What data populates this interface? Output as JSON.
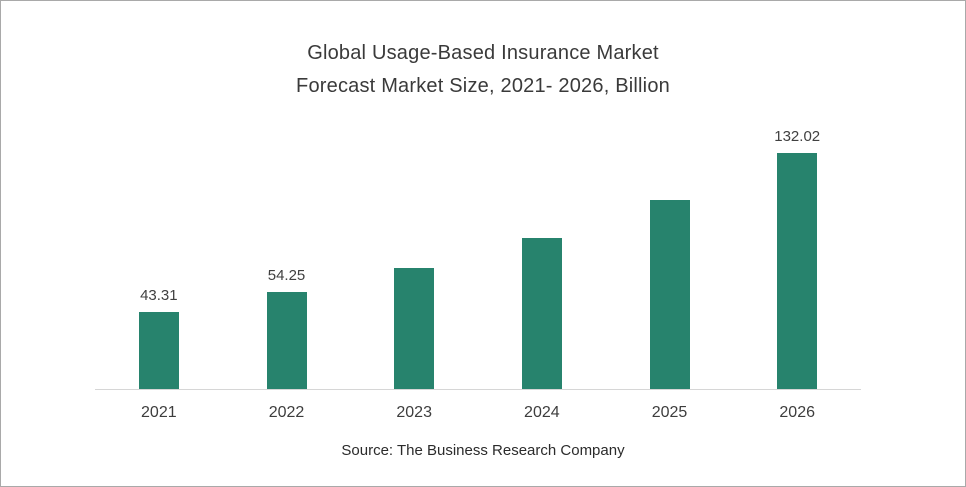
{
  "chart": {
    "title_display": "Global Usage-Based Insurance Market\nForecast Market Size, 2021- 2026, Billion",
    "source": "Source: The Business Research Company",
    "bar_color": "#27836D",
    "label_color": "#404040"
  },
  "chart_data": {
    "type": "bar",
    "title": "Global Usage-Based Insurance Market Forecast Market Size, 2021- 2026, Billion",
    "categories": [
      "2021",
      "2022",
      "2023",
      "2024",
      "2025",
      "2026"
    ],
    "values": [
      43.31,
      54.25,
      67.8,
      84.7,
      105.8,
      132.02
    ],
    "data_labels": [
      "43.31",
      "54.25",
      "",
      "",
      "",
      "132.02"
    ],
    "xlabel": "",
    "ylabel": "",
    "ylim": [
      0,
      140
    ],
    "grid": false,
    "legend": false,
    "bar_color": "#27836D",
    "source": "Source: The Business Research Company"
  }
}
